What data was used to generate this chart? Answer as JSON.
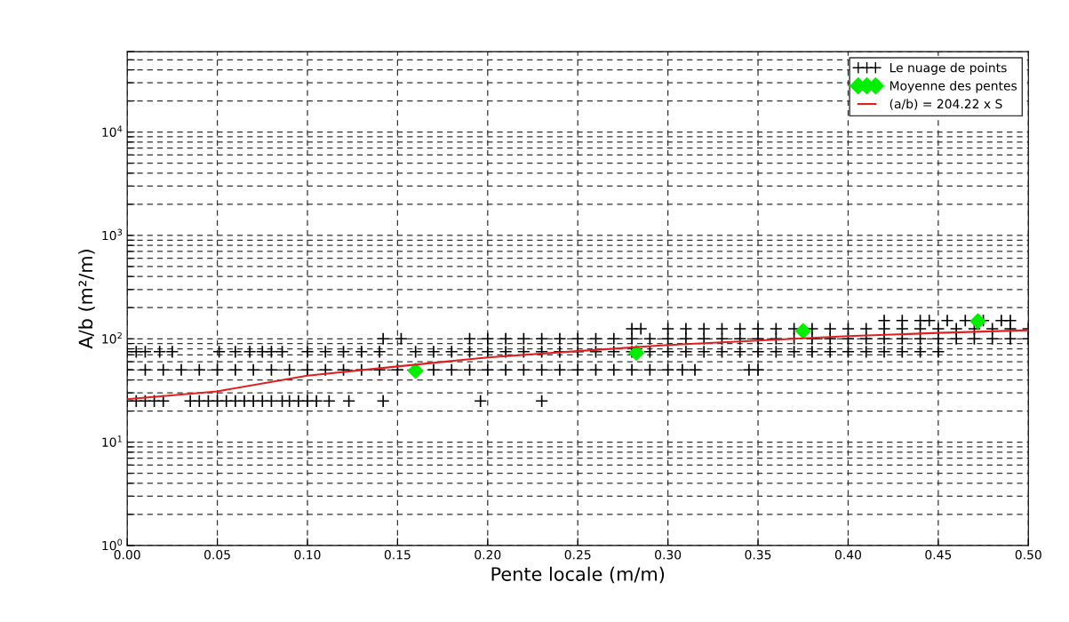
{
  "chart_data": {
    "type": "scatter",
    "xlabel": "Pente locale (m/m)",
    "ylabel": "A/b (m²/m)",
    "log": "y",
    "grid": true,
    "legend": "top right",
    "xlim": [
      0,
      0.5
    ],
    "ylim": [
      1,
      60000
    ],
    "xticks": [
      {
        "value": 0,
        "label": "0.00"
      },
      {
        "value": 0.05,
        "label": "0.05"
      },
      {
        "value": 0.1,
        "label": "0.10"
      },
      {
        "value": 0.15,
        "label": "0.15"
      },
      {
        "value": 0.2,
        "label": "0.20"
      },
      {
        "value": 0.25,
        "label": "0.25"
      },
      {
        "value": 0.3,
        "label": "0.30"
      },
      {
        "value": 0.35,
        "label": "0.35"
      },
      {
        "value": 0.4,
        "label": "0.40"
      },
      {
        "value": 0.45,
        "label": "0.45"
      },
      {
        "value": 0.5,
        "label": "0.50"
      }
    ],
    "yticks": [
      {
        "value": 1,
        "label": "10$^{0}$"
      },
      {
        "value": 2,
        "label": null
      },
      {
        "value": 3,
        "label": null
      },
      {
        "value": 4,
        "label": null
      },
      {
        "value": 5,
        "label": null
      },
      {
        "value": 6,
        "label": null
      },
      {
        "value": 7,
        "label": null
      },
      {
        "value": 8,
        "label": null
      },
      {
        "value": 9,
        "label": null
      },
      {
        "value": 10,
        "label": "10$^{1}$"
      },
      {
        "value": 20,
        "label": null
      },
      {
        "value": 30,
        "label": null
      },
      {
        "value": 40,
        "label": null
      },
      {
        "value": 50,
        "label": null
      },
      {
        "value": 60,
        "label": null
      },
      {
        "value": 70,
        "label": null
      },
      {
        "value": 80,
        "label": null
      },
      {
        "value": 90,
        "label": null
      },
      {
        "value": 100,
        "label": "10$^{2}$"
      },
      {
        "value": 200,
        "label": null
      },
      {
        "value": 300,
        "label": null
      },
      {
        "value": 400,
        "label": null
      },
      {
        "value": 500,
        "label": null
      },
      {
        "value": 600,
        "label": null
      },
      {
        "value": 700,
        "label": null
      },
      {
        "value": 800,
        "label": null
      },
      {
        "value": 900,
        "label": null
      },
      {
        "value": 1000,
        "label": "10$^{3}$"
      },
      {
        "value": 2000,
        "label": null
      },
      {
        "value": 3000,
        "label": null
      },
      {
        "value": 4000,
        "label": null
      },
      {
        "value": 5000,
        "label": null
      },
      {
        "value": 6000,
        "label": null
      },
      {
        "value": 7000,
        "label": null
      },
      {
        "value": 8000,
        "label": null
      },
      {
        "value": 9000,
        "label": null
      },
      {
        "value": 10000,
        "label": "10$^{4}$"
      },
      {
        "value": 20000,
        "label": null
      },
      {
        "value": 30000,
        "label": null
      },
      {
        "value": 40000,
        "label": null
      },
      {
        "value": 50000,
        "label": null
      },
      {
        "value": 60000,
        "label": null
      }
    ],
    "series": [
      {
        "name": "Le nuage de points",
        "marker": "cross",
        "color": "#000000",
        "x": [
          0,
          0.005,
          0.01,
          0.015,
          0.02,
          0.035,
          0.04,
          0.045,
          0.05,
          0.055,
          0.06,
          0.065,
          0.07,
          0.075,
          0.08,
          0.086,
          0.09,
          0.095,
          0.1,
          0.105,
          0.112,
          0.123,
          0.142,
          0.196,
          0.23,
          0,
          0.01,
          0.02,
          0.03,
          0.04,
          0.05,
          0.06,
          0.07,
          0.08,
          0.09,
          0.1,
          0.11,
          0.12,
          0.13,
          0.14,
          0.15,
          0.17,
          0.18,
          0.19,
          0.2,
          0.21,
          0.22,
          0.23,
          0.24,
          0.25,
          0.26,
          0.27,
          0.28,
          0.29,
          0.3,
          0.308,
          0.315,
          0.345,
          0.35,
          0,
          0.005,
          0.01,
          0.018,
          0.025,
          0.051,
          0.06,
          0.068,
          0.075,
          0.08,
          0.086,
          0.1,
          0.11,
          0.12,
          0.13,
          0.14,
          0.16,
          0.17,
          0.18,
          0.19,
          0.2,
          0.21,
          0.22,
          0.23,
          0.24,
          0.25,
          0.26,
          0.27,
          0.28,
          0.29,
          0.3,
          0.31,
          0.32,
          0.33,
          0.34,
          0.35,
          0.36,
          0.37,
          0.38,
          0.39,
          0.4,
          0.41,
          0.42,
          0.43,
          0.44,
          0.45,
          0.142,
          0.152,
          0.19,
          0.2,
          0.21,
          0.22,
          0.23,
          0.24,
          0.25,
          0.26,
          0.27,
          0.28,
          0.29,
          0.3,
          0.31,
          0.32,
          0.33,
          0.34,
          0.35,
          0.36,
          0.37,
          0.38,
          0.39,
          0.4,
          0.41,
          0.42,
          0.43,
          0.44,
          0.45,
          0.46,
          0.47,
          0.48,
          0.49,
          0.5,
          0.28,
          0.285,
          0.3,
          0.31,
          0.32,
          0.33,
          0.34,
          0.35,
          0.36,
          0.37,
          0.38,
          0.39,
          0.4,
          0.41,
          0.42,
          0.43,
          0.44,
          0.45,
          0.46,
          0.47,
          0.48,
          0.49,
          0.5,
          0.42,
          0.43,
          0.44,
          0.445,
          0.455,
          0.465,
          0.475,
          0.485,
          0.49
        ],
        "values": [
          25,
          25,
          25,
          25,
          25,
          25,
          25,
          25,
          25,
          25,
          25,
          25,
          25,
          25,
          25,
          25,
          25,
          25,
          25,
          25,
          25,
          25,
          25,
          25,
          25,
          50,
          50,
          50,
          50,
          50,
          50,
          50,
          50,
          50,
          50,
          50,
          50,
          50,
          50,
          50,
          50,
          50,
          50,
          50,
          50,
          50,
          50,
          50,
          50,
          50,
          50,
          50,
          50,
          50,
          50,
          50,
          50,
          50,
          50,
          75,
          75,
          75,
          75,
          75,
          75,
          75,
          75,
          75,
          75,
          75,
          75,
          75,
          75,
          75,
          75,
          75,
          75,
          75,
          75,
          75,
          75,
          75,
          75,
          75,
          75,
          75,
          75,
          75,
          75,
          75,
          75,
          75,
          75,
          75,
          75,
          75,
          75,
          75,
          75,
          75,
          75,
          75,
          75,
          75,
          75,
          100,
          100,
          100,
          100,
          100,
          100,
          100,
          100,
          100,
          100,
          100,
          100,
          100,
          100,
          100,
          100,
          100,
          100,
          100,
          100,
          100,
          100,
          100,
          100,
          100,
          100,
          100,
          100,
          100,
          100,
          100,
          100,
          100,
          100,
          125,
          125,
          125,
          125,
          125,
          125,
          125,
          125,
          125,
          125,
          125,
          125,
          125,
          125,
          125,
          125,
          125,
          125,
          125,
          125,
          125,
          125,
          125,
          150,
          150,
          150,
          150,
          150,
          150,
          150,
          150,
          150
        ]
      },
      {
        "name": "Moyenne des pentes",
        "marker": "diamond",
        "color": "#00ee00",
        "x": [
          0.16,
          0.2825,
          0.375,
          0.472
        ],
        "values": [
          49,
          73,
          119,
          148
        ]
      },
      {
        "name": "(a/b) = 204.22 x S",
        "type": "line",
        "marker": "none",
        "line_style": "solid",
        "color": "#e02020",
        "x": [
          0,
          0.05,
          0.1,
          0.15,
          0.2,
          0.25,
          0.3,
          0.35,
          0.4,
          0.45,
          0.5
        ],
        "values": [
          26,
          31,
          44,
          54,
          66,
          76,
          87,
          96,
          106,
          114,
          121
        ]
      }
    ]
  }
}
